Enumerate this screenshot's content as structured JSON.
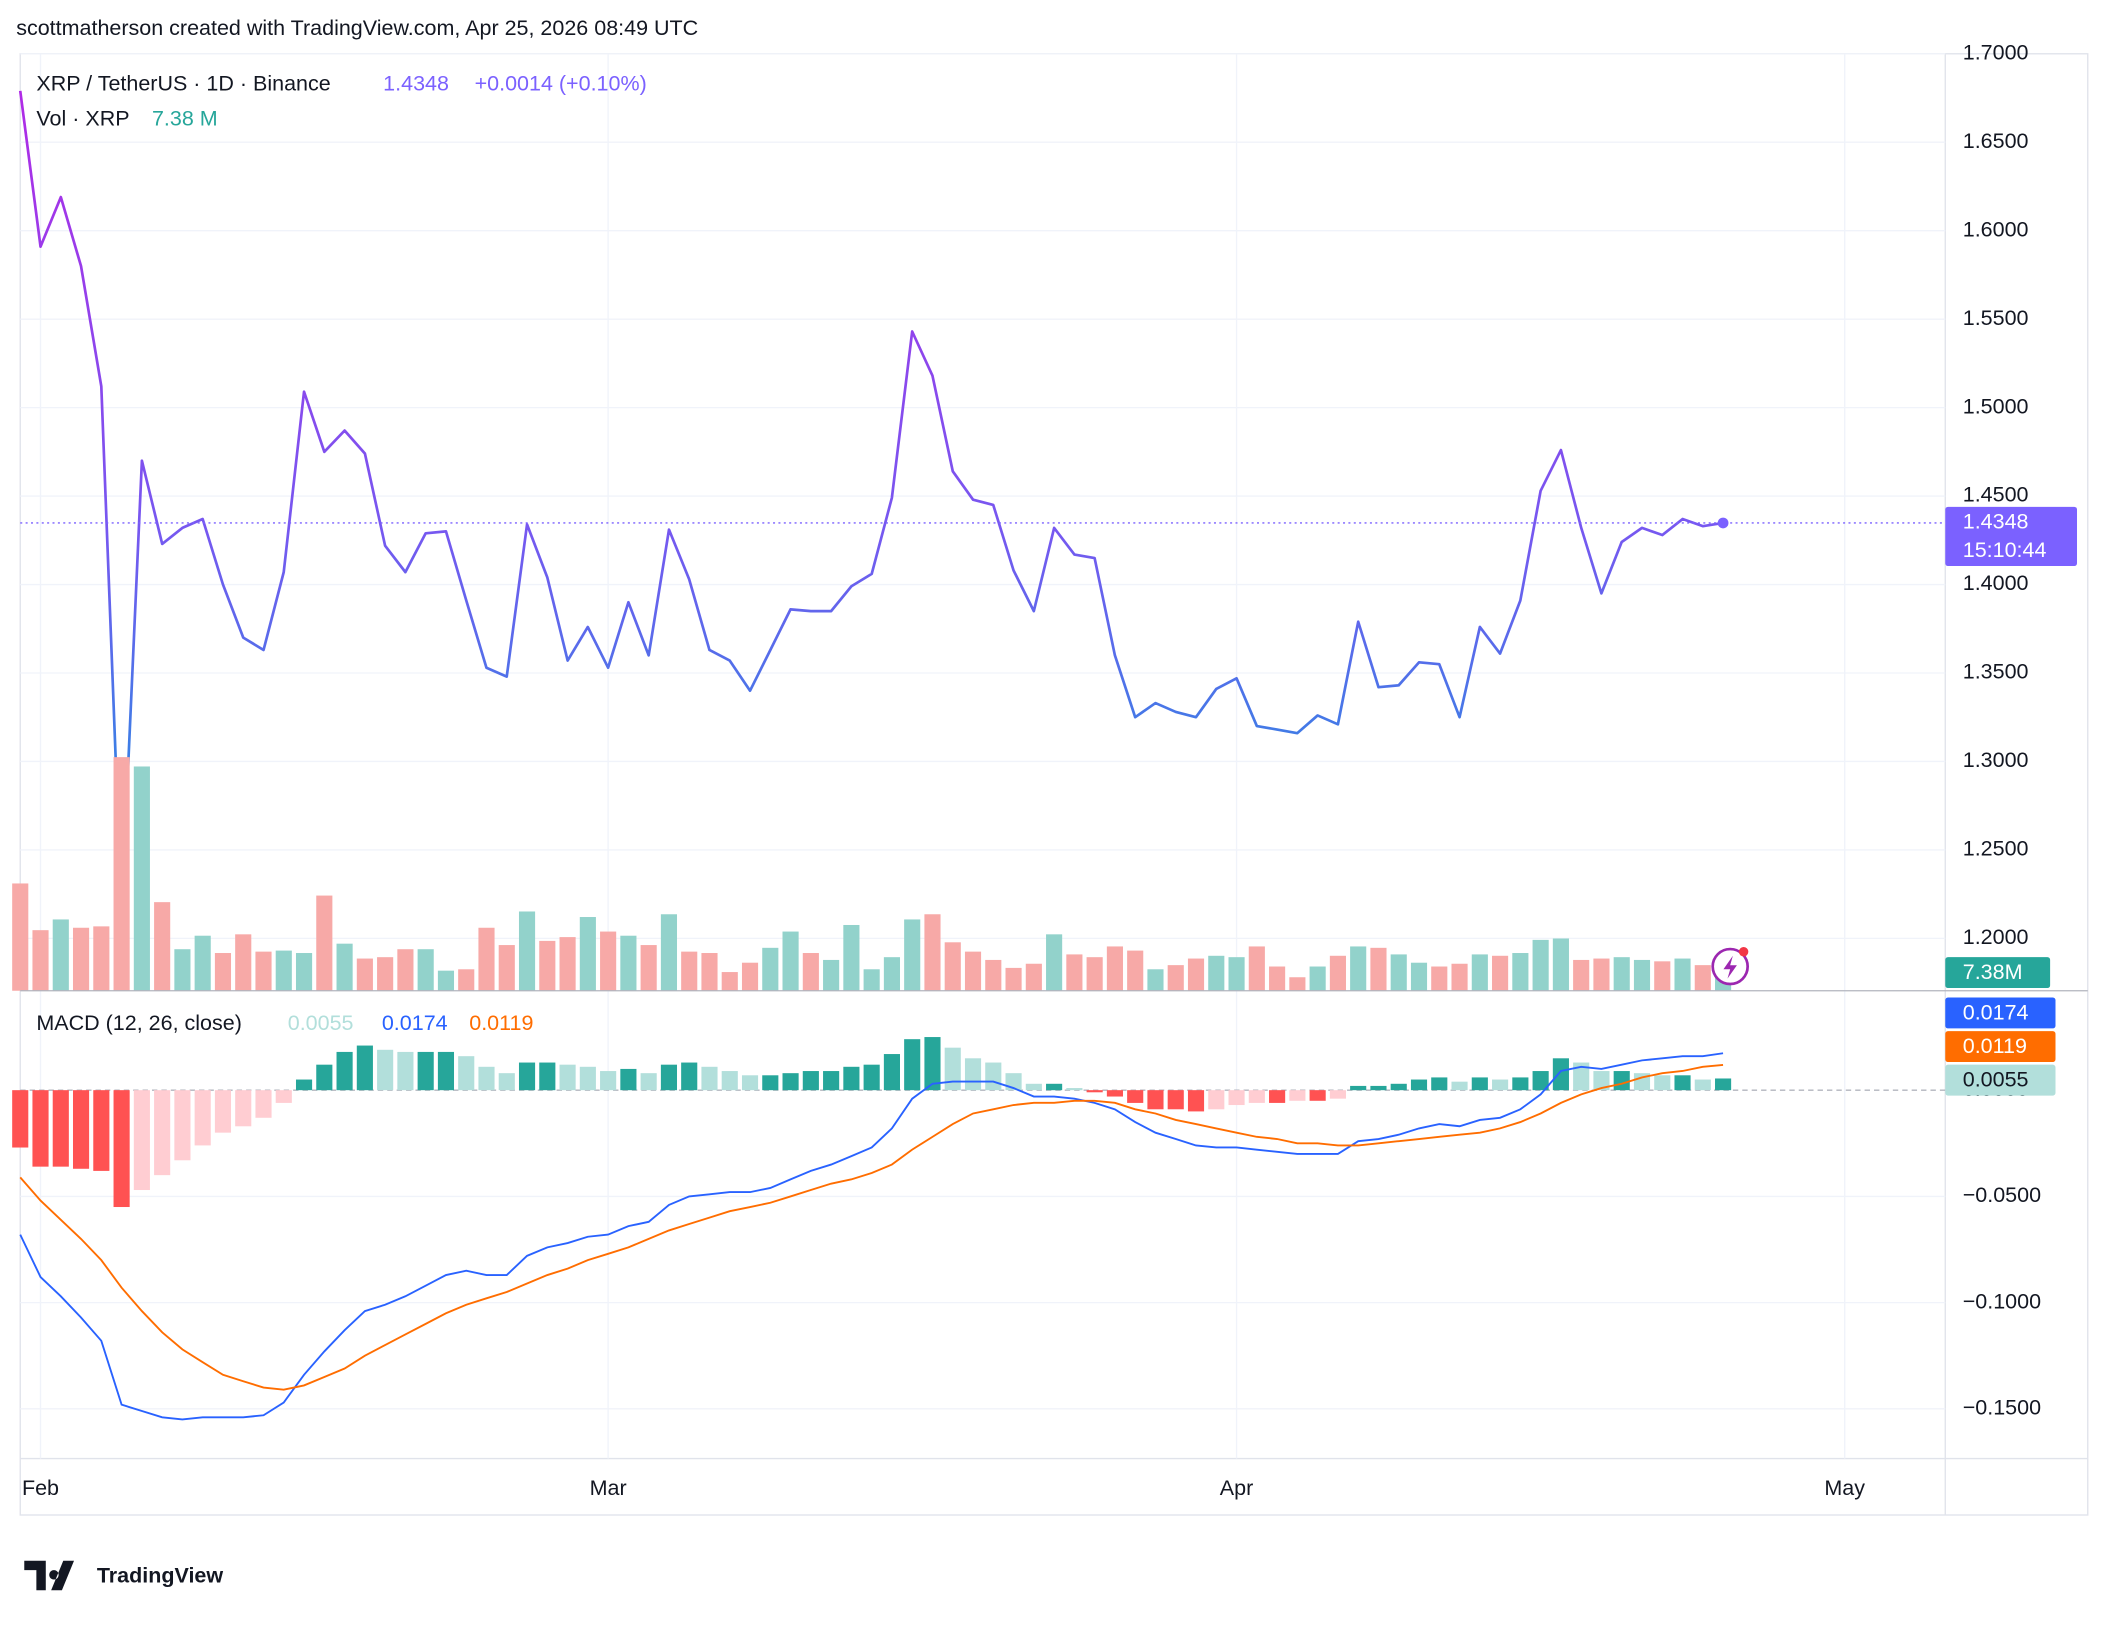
{
  "attribution": "scottmatherson created with TradingView.com, Apr 25, 2026 08:49 UTC",
  "brand": "TradingView",
  "chart_data": [
    {
      "type": "line",
      "title": "XRP / TetherUS · 1D · Binance",
      "change_label": "+0.0014 (+0.10%)",
      "countdown": "15:10:44",
      "categories": [
        null,
        "Feb",
        null,
        null,
        null,
        null,
        null,
        null,
        null,
        null,
        null,
        null,
        null,
        null,
        null,
        null,
        null,
        null,
        null,
        null,
        null,
        null,
        null,
        null,
        null,
        null,
        null,
        null,
        null,
        "Mar",
        null,
        null,
        null,
        null,
        null,
        null,
        null,
        null,
        null,
        null,
        null,
        null,
        null,
        null,
        null,
        null,
        null,
        null,
        null,
        null,
        null,
        null,
        null,
        null,
        null,
        null,
        null,
        null,
        null,
        null,
        "Apr",
        null,
        null,
        null,
        null,
        null,
        null,
        null,
        null,
        null,
        null,
        null,
        null,
        null,
        null,
        null,
        null,
        null,
        null,
        null,
        null,
        null,
        null,
        null,
        null,
        null,
        null,
        null,
        null,
        null,
        "May",
        null,
        null,
        null,
        null
      ],
      "series": [
        {
          "color": "#7b61ff",
          "gradient": [
            {
              "value": 1.68,
              "color": "#b02ae6"
            },
            {
              "value": 1.43,
              "color": "#7658f0"
            },
            {
              "value": 1.3,
              "color": "#3b7fe5"
            }
          ],
          "values": [
            1.679,
            1.591,
            1.619,
            1.58,
            1.512,
            1.215,
            1.47,
            1.423,
            1.432,
            1.437,
            1.4,
            1.37,
            1.363,
            1.407,
            1.509,
            1.475,
            1.487,
            1.474,
            1.422,
            1.407,
            1.429,
            1.43,
            1.391,
            1.353,
            1.348,
            1.434,
            1.404,
            1.357,
            1.376,
            1.353,
            1.39,
            1.36,
            1.431,
            1.403,
            1.363,
            1.357,
            1.34,
            1.363,
            1.386,
            1.385,
            1.385,
            1.399,
            1.406,
            1.449,
            1.543,
            1.518,
            1.464,
            1.448,
            1.445,
            1.408,
            1.385,
            1.432,
            1.417,
            1.415,
            1.36,
            1.325,
            1.333,
            1.328,
            1.325,
            1.341,
            1.347,
            1.32,
            1.318,
            1.316,
            1.326,
            1.321,
            1.379,
            1.342,
            1.343,
            1.356,
            1.355,
            1.325,
            1.376,
            1.361,
            1.391,
            1.453,
            1.476,
            1.432,
            1.395,
            1.424,
            1.432,
            1.428,
            1.437,
            1.433,
            1.4348,
            null,
            null,
            null,
            null,
            null,
            null,
            null,
            null,
            null,
            null
          ]
        }
      ],
      "ylim": [
        1.1704,
        1.7
      ],
      "yticks": [
        {
          "value": 1.2,
          "label": "1.2000"
        },
        {
          "value": 1.25,
          "label": "1.2500"
        },
        {
          "value": 1.3,
          "label": "1.3000"
        },
        {
          "value": 1.35,
          "label": "1.3500"
        },
        {
          "value": 1.4,
          "label": "1.4000"
        },
        {
          "value": 1.45,
          "label": "1.4500"
        },
        {
          "value": 1.5,
          "label": "1.5000"
        },
        {
          "value": 1.55,
          "label": "1.5500"
        },
        {
          "value": 1.6,
          "label": "1.6000"
        },
        {
          "value": 1.65,
          "label": "1.6500"
        },
        {
          "value": 1.7,
          "label": "1.7000"
        }
      ],
      "grid": true
    },
    {
      "type": "bar",
      "title": "Vol · XRP",
      "value_label": "7.38 M",
      "tag_label": "7.38M",
      "up_color": "#92d2cb",
      "down_color": "#f7a9a7",
      "tag_color": "#26a69a",
      "values": [
        31.0,
        17.5,
        20.6,
        18.2,
        18.6,
        67.5,
        64.8,
        25.6,
        12.0,
        15.9,
        10.9,
        16.3,
        11.3,
        11.6,
        10.9,
        27.5,
        13.6,
        9.3,
        9.7,
        12.0,
        12.0,
        5.8,
        6.2,
        18.2,
        13.2,
        22.9,
        14.4,
        15.5,
        21.3,
        17.1,
        15.9,
        13.2,
        22.1,
        11.3,
        10.9,
        5.4,
        8.1,
        12.4,
        17.1,
        10.9,
        8.9,
        19.0,
        6.2,
        9.7,
        20.6,
        22.1,
        14.0,
        11.3,
        8.9,
        6.6,
        7.8,
        16.3,
        10.5,
        9.7,
        12.8,
        11.6,
        6.2,
        7.4,
        9.3,
        10.1,
        9.7,
        12.8,
        7.0,
        3.9,
        7.0,
        10.1,
        12.8,
        12.4,
        10.5,
        8.1,
        7.0,
        7.8,
        10.5,
        10.1,
        10.9,
        14.7,
        15.1,
        8.9,
        9.3,
        9.7,
        8.9,
        8.5,
        9.3,
        7.4,
        7.38,
        null,
        null,
        null,
        null,
        null,
        null,
        null,
        null,
        null,
        null
      ]
    },
    {
      "type": "macd",
      "title": "MACD (12, 26, close)",
      "series": [
        {
          "colors": {
            "pos_up": "#26a69a",
            "pos_down": "#b2dfdb",
            "neg_down": "#ff5252",
            "neg_up": "#ffcdd2"
          },
          "values": [
            -0.027,
            -0.036,
            -0.036,
            -0.037,
            -0.038,
            -0.055,
            -0.047,
            -0.04,
            -0.033,
            -0.026,
            -0.02,
            -0.017,
            -0.013,
            -0.006,
            0.005,
            0.012,
            0.018,
            0.021,
            0.019,
            0.018,
            0.018,
            0.018,
            0.016,
            0.011,
            0.008,
            0.013,
            0.013,
            0.012,
            0.011,
            0.009,
            0.01,
            0.008,
            0.012,
            0.013,
            0.011,
            0.009,
            0.007,
            0.007,
            0.008,
            0.009,
            0.009,
            0.011,
            0.012,
            0.017,
            0.024,
            0.025,
            0.02,
            0.015,
            0.013,
            0.008,
            0.003,
            0.003,
            0.001,
            -0.001,
            -0.003,
            -0.006,
            -0.009,
            -0.009,
            -0.01,
            -0.009,
            -0.007,
            -0.006,
            -0.006,
            -0.005,
            -0.005,
            -0.004,
            0.002,
            0.002,
            0.003,
            0.005,
            0.006,
            0.004,
            0.006,
            0.005,
            0.006,
            0.009,
            0.015,
            0.013,
            0.009,
            0.009,
            0.008,
            0.007,
            0.007,
            0.005,
            0.0055,
            null,
            null,
            null,
            null,
            null,
            null,
            null,
            null,
            null,
            null
          ]
        },
        {
          "color": "#2962ff",
          "values": [
            -0.068,
            -0.088,
            -0.097,
            -0.107,
            -0.118,
            -0.148,
            -0.151,
            -0.154,
            -0.155,
            -0.154,
            -0.154,
            -0.154,
            -0.153,
            -0.147,
            -0.134,
            -0.123,
            -0.113,
            -0.104,
            -0.101,
            -0.097,
            -0.092,
            -0.087,
            -0.085,
            -0.087,
            -0.087,
            -0.078,
            -0.074,
            -0.072,
            -0.069,
            -0.068,
            -0.064,
            -0.062,
            -0.054,
            -0.05,
            -0.049,
            -0.048,
            -0.048,
            -0.046,
            -0.042,
            -0.038,
            -0.035,
            -0.031,
            -0.027,
            -0.018,
            -0.004,
            0.003,
            0.004,
            0.004,
            0.004,
            0.001,
            -0.003,
            -0.003,
            -0.004,
            -0.006,
            -0.009,
            -0.015,
            -0.02,
            -0.023,
            -0.026,
            -0.027,
            -0.027,
            -0.028,
            -0.029,
            -0.03,
            -0.03,
            -0.03,
            -0.024,
            -0.023,
            -0.021,
            -0.018,
            -0.016,
            -0.017,
            -0.014,
            -0.013,
            -0.009,
            -0.002,
            0.009,
            0.011,
            0.01,
            0.012,
            0.014,
            0.015,
            0.016,
            0.016,
            0.0174,
            null,
            null,
            null,
            null,
            null,
            null,
            null,
            null,
            null,
            null
          ]
        },
        {
          "color": "#ff6d00",
          "values": [
            -0.041,
            -0.052,
            -0.061,
            -0.07,
            -0.08,
            -0.093,
            -0.104,
            -0.114,
            -0.122,
            -0.128,
            -0.134,
            -0.137,
            -0.14,
            -0.141,
            -0.139,
            -0.135,
            -0.131,
            -0.125,
            -0.12,
            -0.115,
            -0.11,
            -0.105,
            -0.101,
            -0.098,
            -0.095,
            -0.091,
            -0.087,
            -0.084,
            -0.08,
            -0.077,
            -0.074,
            -0.07,
            -0.066,
            -0.063,
            -0.06,
            -0.057,
            -0.055,
            -0.053,
            -0.05,
            -0.047,
            -0.044,
            -0.042,
            -0.039,
            -0.035,
            -0.028,
            -0.022,
            -0.016,
            -0.011,
            -0.009,
            -0.007,
            -0.006,
            -0.006,
            -0.005,
            -0.005,
            -0.006,
            -0.009,
            -0.011,
            -0.014,
            -0.016,
            -0.018,
            -0.02,
            -0.022,
            -0.023,
            -0.025,
            -0.025,
            -0.026,
            -0.026,
            -0.025,
            -0.024,
            -0.023,
            -0.022,
            -0.021,
            -0.02,
            -0.018,
            -0.015,
            -0.011,
            -0.006,
            -0.002,
            0.001,
            0.003,
            0.006,
            0.008,
            0.009,
            0.011,
            0.0119,
            null,
            null,
            null,
            null,
            null,
            null,
            null,
            null,
            null,
            null
          ]
        }
      ],
      "ylim": [
        -0.1734,
        0.0468
      ],
      "yticks": [
        {
          "value": -0.15,
          "label": "−0.1500"
        },
        {
          "value": -0.1,
          "label": "−0.1000"
        },
        {
          "value": -0.05,
          "label": "−0.0500"
        },
        {
          "value": 0,
          "label": "0.0000"
        }
      ],
      "grid": true
    }
  ]
}
